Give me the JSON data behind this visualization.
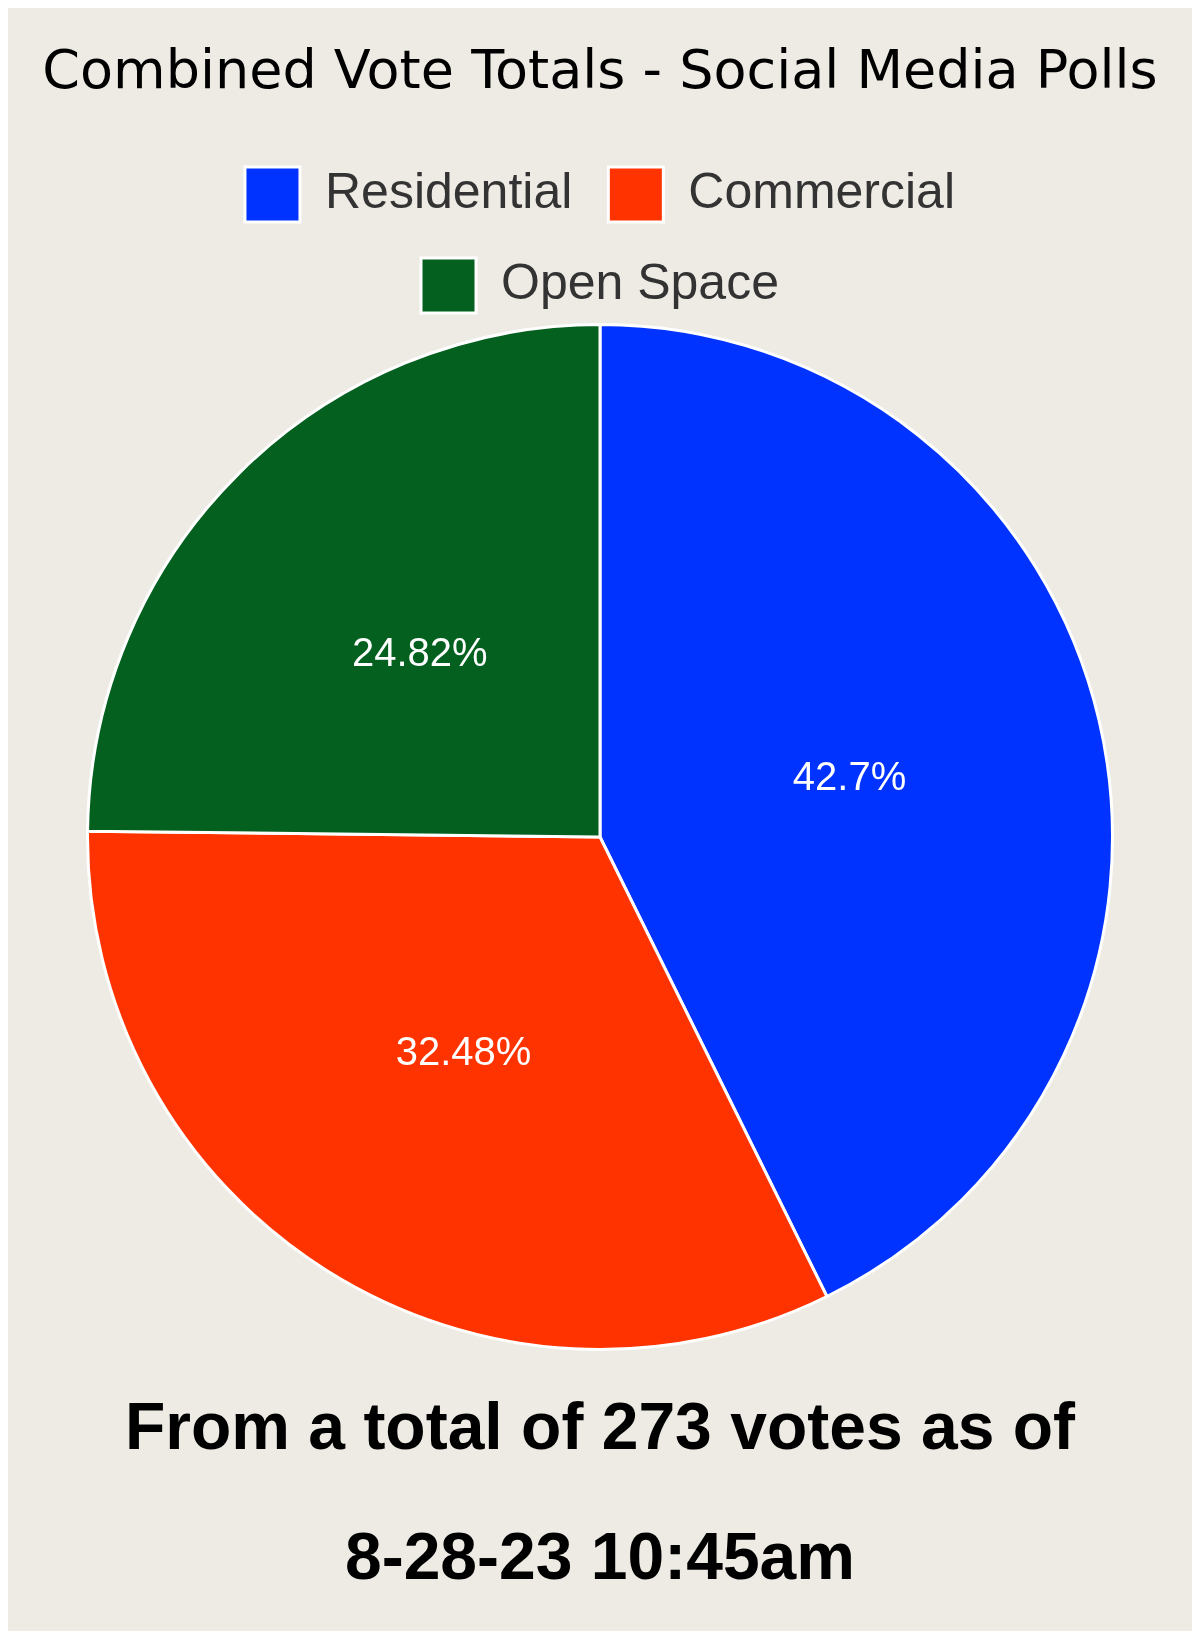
{
  "chart_data": {
    "type": "pie",
    "title": "Combined Vote Totals - Social Media Polls",
    "categories": [
      "Residential",
      "Commercial",
      "Open Space"
    ],
    "values": [
      42.7,
      32.48,
      24.82
    ],
    "colors": [
      "#0033ff",
      "#ff3300",
      "#03601f"
    ],
    "value_labels": [
      "42.7%",
      "32.48%",
      "24.82%"
    ],
    "legend": "top",
    "annotations": [
      "From a total of 273 votes as of 8-28-23 10:45am"
    ]
  }
}
